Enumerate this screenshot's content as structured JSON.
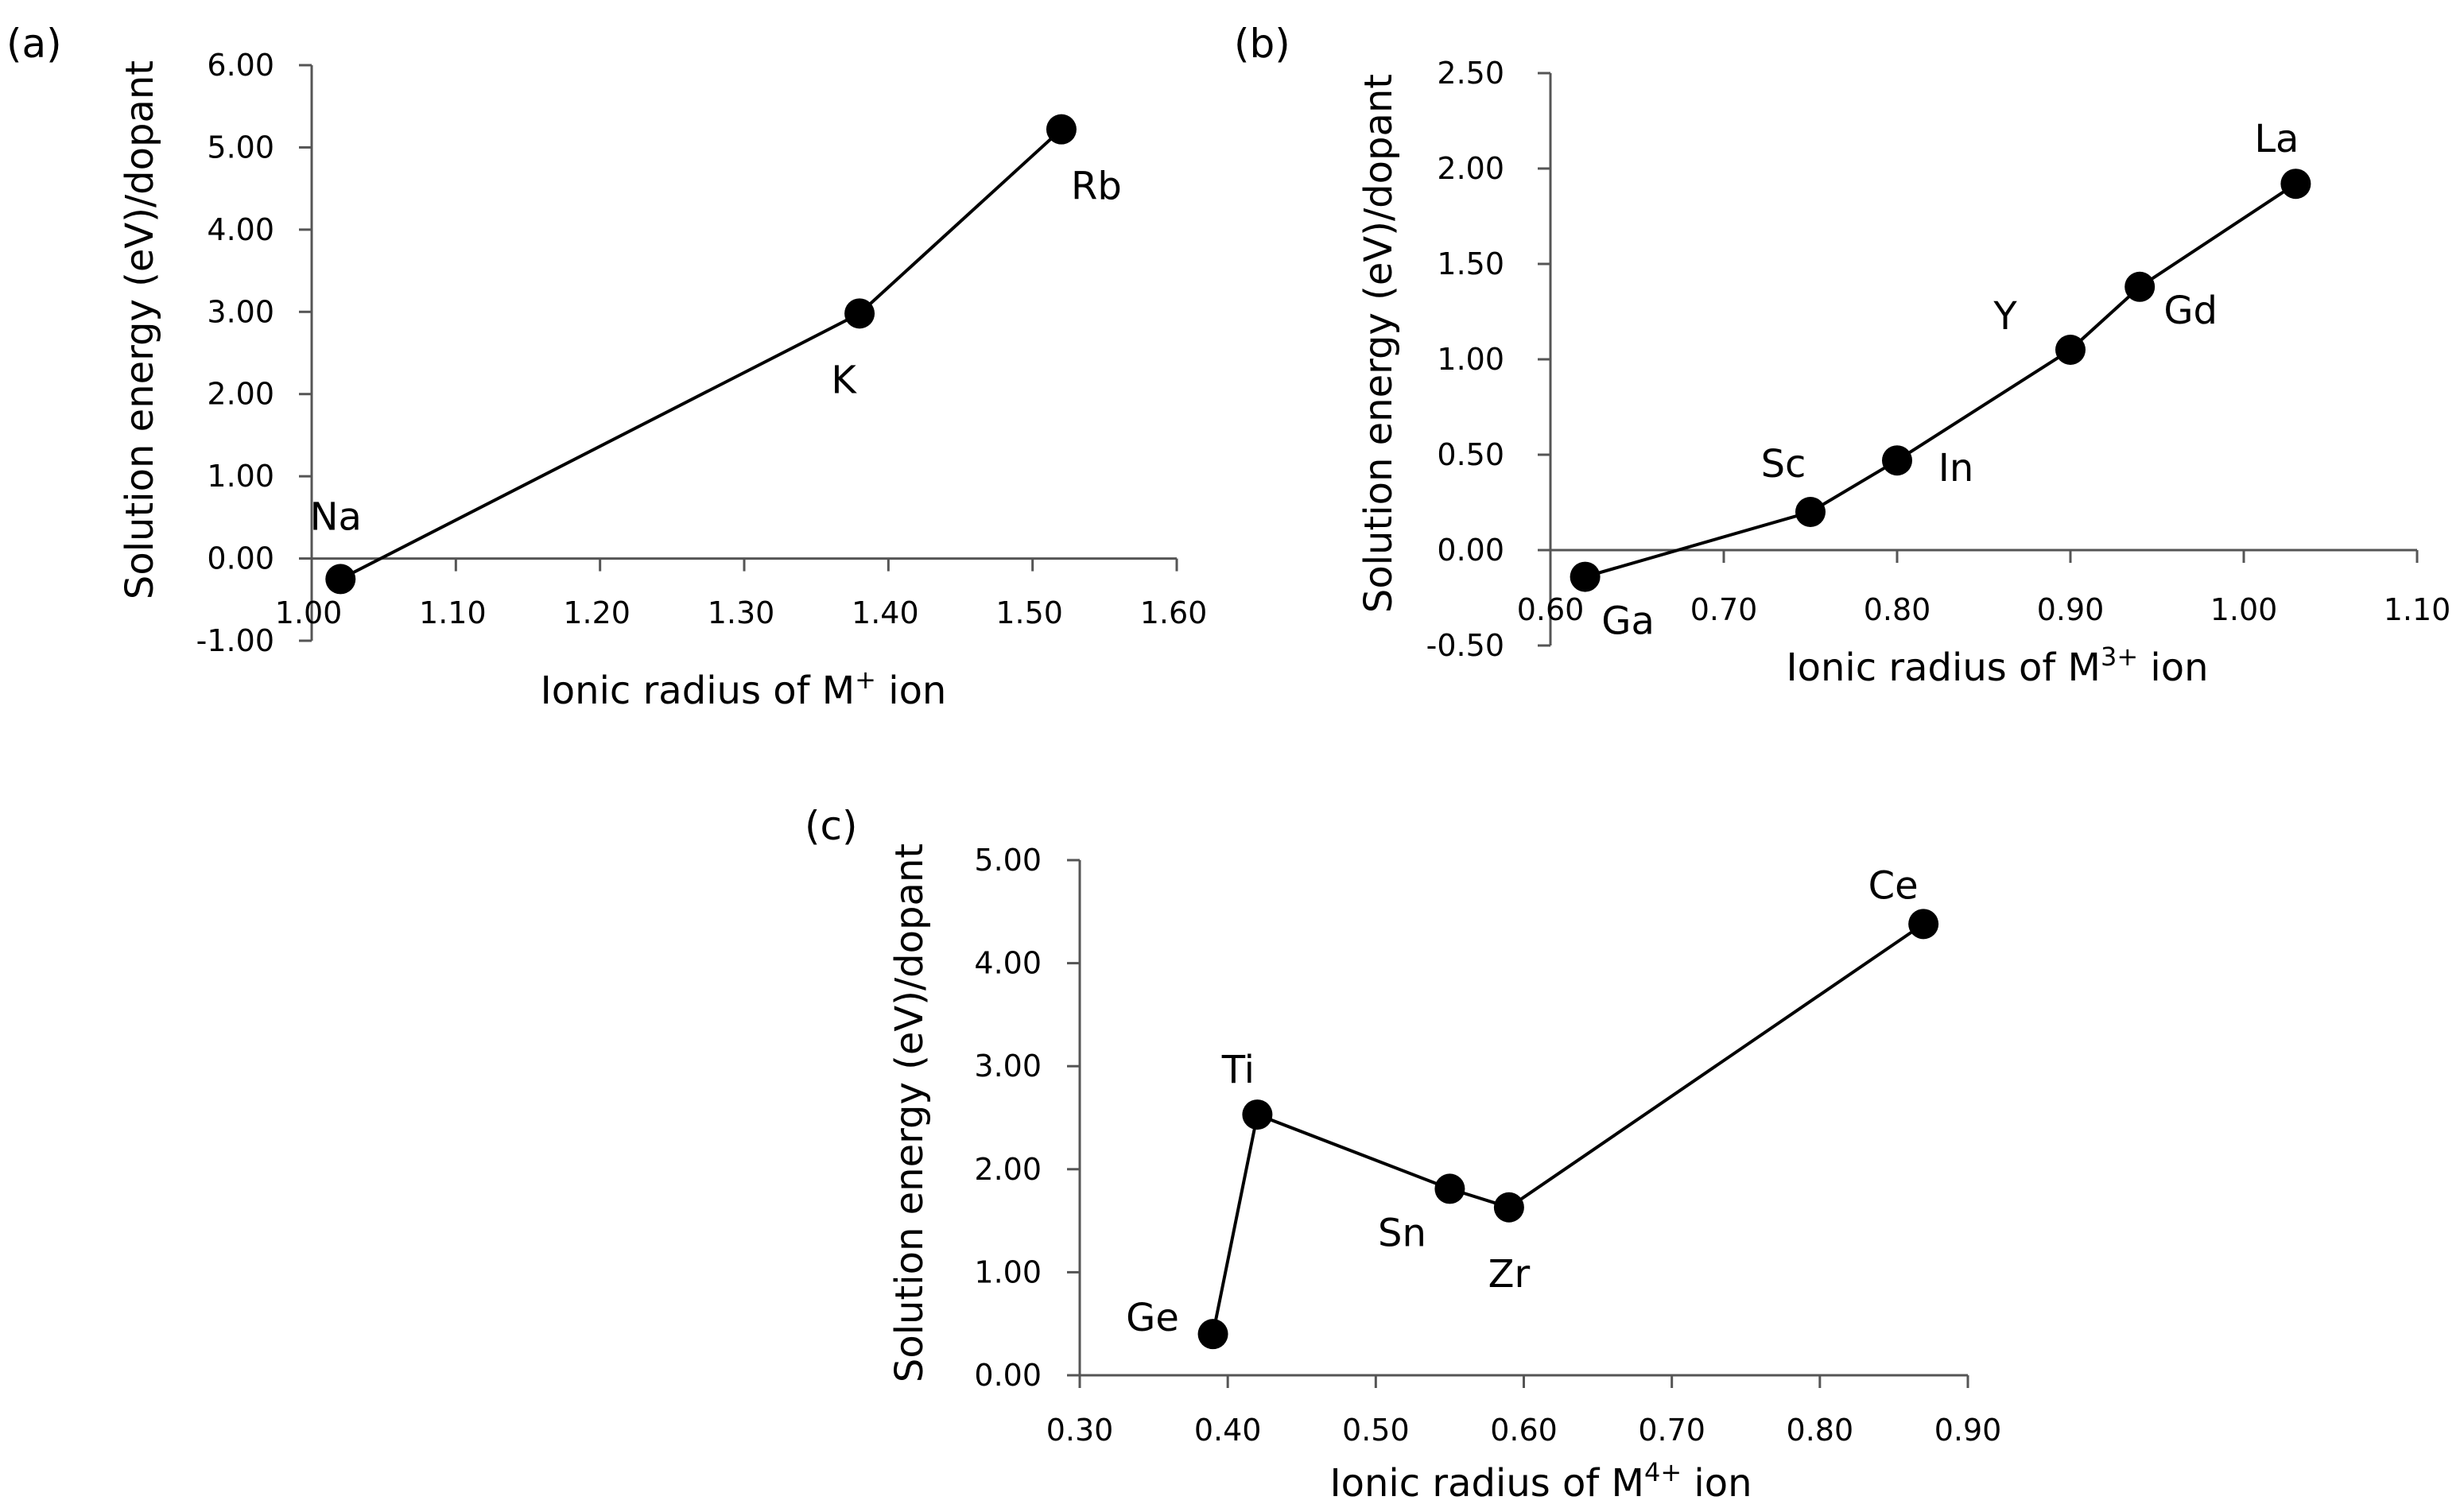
{
  "chart_data": [
    {
      "id": "a",
      "type": "line",
      "panel_label": "(a)",
      "xlabel_main": "Ionic radius of M",
      "xlabel_sup": "+",
      "xlabel_tail": " ion",
      "ylabel": "Solution energy (eV)/dopant",
      "xlim": [
        1.0,
        1.6
      ],
      "ylim": [
        -1.0,
        6.0
      ],
      "xticks": [
        "1.00",
        "1.10",
        "1.20",
        "1.30",
        "1.40",
        "1.50",
        "1.60"
      ],
      "yticks": [
        "-1.00",
        "0.00",
        "1.00",
        "2.00",
        "3.00",
        "4.00",
        "5.00",
        "6.00"
      ],
      "points": [
        {
          "label": "Na",
          "x": 1.02,
          "y": -0.25
        },
        {
          "label": "K",
          "x": 1.38,
          "y": 2.98
        },
        {
          "label": "Rb",
          "x": 1.52,
          "y": 5.22
        }
      ]
    },
    {
      "id": "b",
      "type": "line",
      "panel_label": "(b)",
      "xlabel_main": "Ionic radius of M",
      "xlabel_sup": "3+",
      "xlabel_tail": " ion",
      "ylabel": "Solution energy (eV)/dopant",
      "xlim": [
        0.6,
        1.1
      ],
      "ylim": [
        -0.5,
        2.5
      ],
      "xticks": [
        "0.60",
        "0.70",
        "0.80",
        "0.90",
        "1.00",
        "1.10"
      ],
      "yticks": [
        "-0.50",
        "0.00",
        "0.50",
        "1.00",
        "1.50",
        "2.00",
        "2.50"
      ],
      "points": [
        {
          "label": "Ga",
          "x": 0.62,
          "y": -0.14
        },
        {
          "label": "Sc",
          "x": 0.75,
          "y": 0.2
        },
        {
          "label": "In",
          "x": 0.8,
          "y": 0.47
        },
        {
          "label": "Y",
          "x": 0.9,
          "y": 1.05
        },
        {
          "label": "Gd",
          "x": 0.94,
          "y": 1.38
        },
        {
          "label": "La",
          "x": 1.03,
          "y": 1.92
        }
      ]
    },
    {
      "id": "c",
      "type": "line",
      "panel_label": "(c)",
      "xlabel_main": "Ionic radius of M",
      "xlabel_sup": "4+",
      "xlabel_tail": " ion",
      "ylabel": "Solution energy (eV)/dopant",
      "xlim": [
        0.3,
        0.9
      ],
      "ylim": [
        0.0,
        5.0
      ],
      "xticks": [
        "0.30",
        "0.40",
        "0.50",
        "0.60",
        "0.70",
        "0.80",
        "0.90"
      ],
      "yticks": [
        "0.00",
        "1.00",
        "2.00",
        "3.00",
        "4.00",
        "5.00"
      ],
      "points": [
        {
          "label": "Ge",
          "x": 0.39,
          "y": 0.4
        },
        {
          "label": "Ti",
          "x": 0.42,
          "y": 2.53
        },
        {
          "label": "Sn",
          "x": 0.55,
          "y": 1.81
        },
        {
          "label": "Zr",
          "x": 0.59,
          "y": 1.63
        },
        {
          "label": "Ce",
          "x": 0.87,
          "y": 4.38
        }
      ]
    }
  ]
}
